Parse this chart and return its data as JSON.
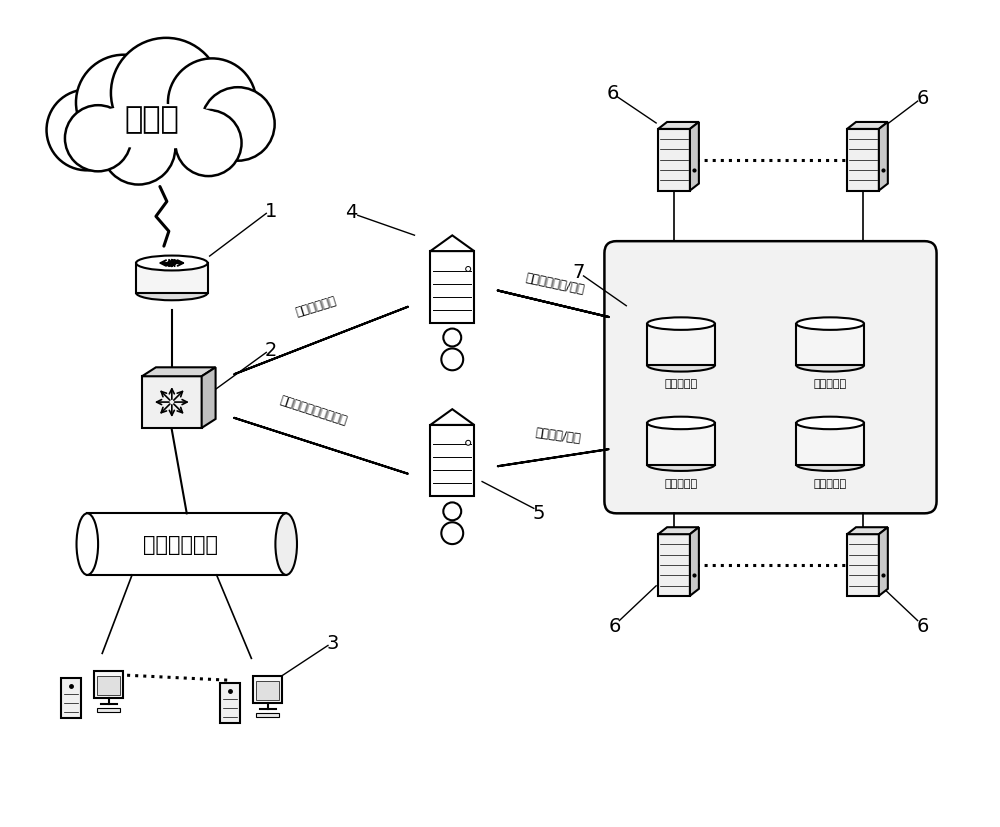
{
  "bg_color": "#ffffff",
  "cloud_label": "互联网",
  "lan_label": "用户侧局域网",
  "db_labels": [
    "流量数据库",
    "流量数据库",
    "动态规则库",
    "流量数据库"
  ],
  "arrow_label_1": "镜像流量数据",
  "arrow_label_2": "预处理数据出/入库",
  "arrow_label_3": "规则调度/读取",
  "arrow_label_4": "联动控制（动态规则）",
  "figsize": [
    10.0,
    8.28
  ],
  "dpi": 100
}
